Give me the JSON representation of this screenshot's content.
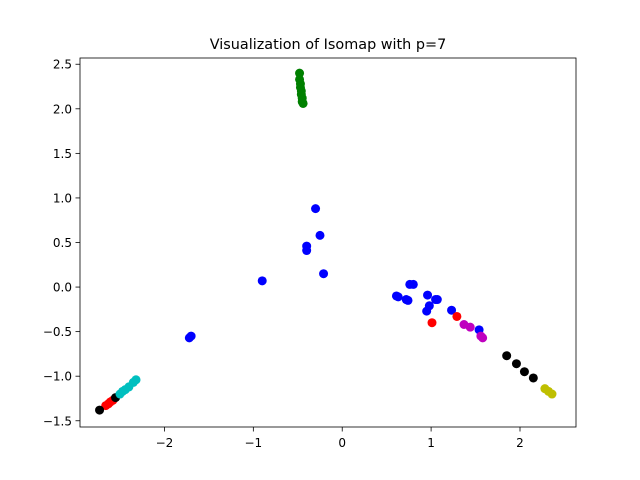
{
  "chart_data": {
    "type": "scatter",
    "title": "Visualization of Isomap with p=7",
    "xlabel": "",
    "ylabel": "",
    "xlim": [
      -2.95,
      2.63
    ],
    "ylim": [
      -1.57,
      2.57
    ],
    "x_ticks": [
      {
        "value": -2,
        "label": "−2"
      },
      {
        "value": -1,
        "label": "−1"
      },
      {
        "value": 0,
        "label": "0"
      },
      {
        "value": 1,
        "label": "1"
      },
      {
        "value": 2,
        "label": "2"
      }
    ],
    "y_ticks": [
      {
        "value": -1.5,
        "label": "−1.5"
      },
      {
        "value": -1.0,
        "label": "−1.0"
      },
      {
        "value": -0.5,
        "label": "−0.5"
      },
      {
        "value": 0.0,
        "label": "0.0"
      },
      {
        "value": 0.5,
        "label": "0.5"
      },
      {
        "value": 1.0,
        "label": "1.0"
      },
      {
        "value": 1.5,
        "label": "1.5"
      },
      {
        "value": 2.0,
        "label": "2.0"
      },
      {
        "value": 2.5,
        "label": "2.5"
      }
    ],
    "grid": false,
    "legend": "none",
    "series": [
      {
        "color": "#008000",
        "points": [
          [
            -0.48,
            2.4
          ],
          [
            -0.48,
            2.33
          ],
          [
            -0.47,
            2.28
          ],
          [
            -0.47,
            2.24
          ],
          [
            -0.46,
            2.2
          ],
          [
            -0.46,
            2.16
          ],
          [
            -0.45,
            2.12
          ],
          [
            -0.45,
            2.08
          ],
          [
            -0.44,
            2.06
          ]
        ]
      },
      {
        "color": "#0000ff",
        "points": [
          [
            -0.3,
            0.88
          ],
          [
            -0.25,
            0.58
          ],
          [
            -0.4,
            0.46
          ],
          [
            -0.4,
            0.41
          ],
          [
            -0.21,
            0.15
          ],
          [
            -0.9,
            0.07
          ],
          [
            -1.7,
            -0.55
          ],
          [
            -1.72,
            -0.57
          ],
          [
            0.61,
            -0.1
          ],
          [
            0.63,
            -0.11
          ],
          [
            0.72,
            -0.14
          ],
          [
            0.74,
            -0.15
          ],
          [
            0.76,
            0.03
          ],
          [
            0.8,
            0.03
          ],
          [
            0.96,
            -0.09
          ],
          [
            0.98,
            -0.21
          ],
          [
            0.95,
            -0.27
          ],
          [
            1.05,
            -0.14
          ],
          [
            1.07,
            -0.14
          ],
          [
            1.23,
            -0.26
          ],
          [
            1.54,
            -0.48
          ]
        ]
      },
      {
        "color": "#ff0000",
        "points": [
          [
            1.01,
            -0.4
          ],
          [
            1.29,
            -0.33
          ],
          [
            -2.58,
            -1.27
          ],
          [
            -2.61,
            -1.29
          ],
          [
            -2.63,
            -1.31
          ],
          [
            -2.66,
            -1.33
          ]
        ]
      },
      {
        "color": "#bf00bf",
        "points": [
          [
            1.37,
            -0.42
          ],
          [
            1.44,
            -0.45
          ],
          [
            1.56,
            -0.55
          ],
          [
            1.58,
            -0.57
          ]
        ]
      },
      {
        "color": "#000000",
        "points": [
          [
            1.85,
            -0.77
          ],
          [
            1.96,
            -0.86
          ],
          [
            2.05,
            -0.95
          ],
          [
            2.15,
            -1.02
          ],
          [
            -2.55,
            -1.24
          ],
          [
            -2.73,
            -1.38
          ]
        ]
      },
      {
        "color": "#bfbf00",
        "points": [
          [
            2.28,
            -1.14
          ],
          [
            2.32,
            -1.17
          ],
          [
            2.36,
            -1.2
          ]
        ]
      },
      {
        "color": "#00bfbf",
        "points": [
          [
            -2.32,
            -1.04
          ],
          [
            -2.35,
            -1.07
          ],
          [
            -2.4,
            -1.12
          ],
          [
            -2.44,
            -1.15
          ],
          [
            -2.47,
            -1.17
          ],
          [
            -2.5,
            -1.2
          ]
        ]
      }
    ]
  }
}
